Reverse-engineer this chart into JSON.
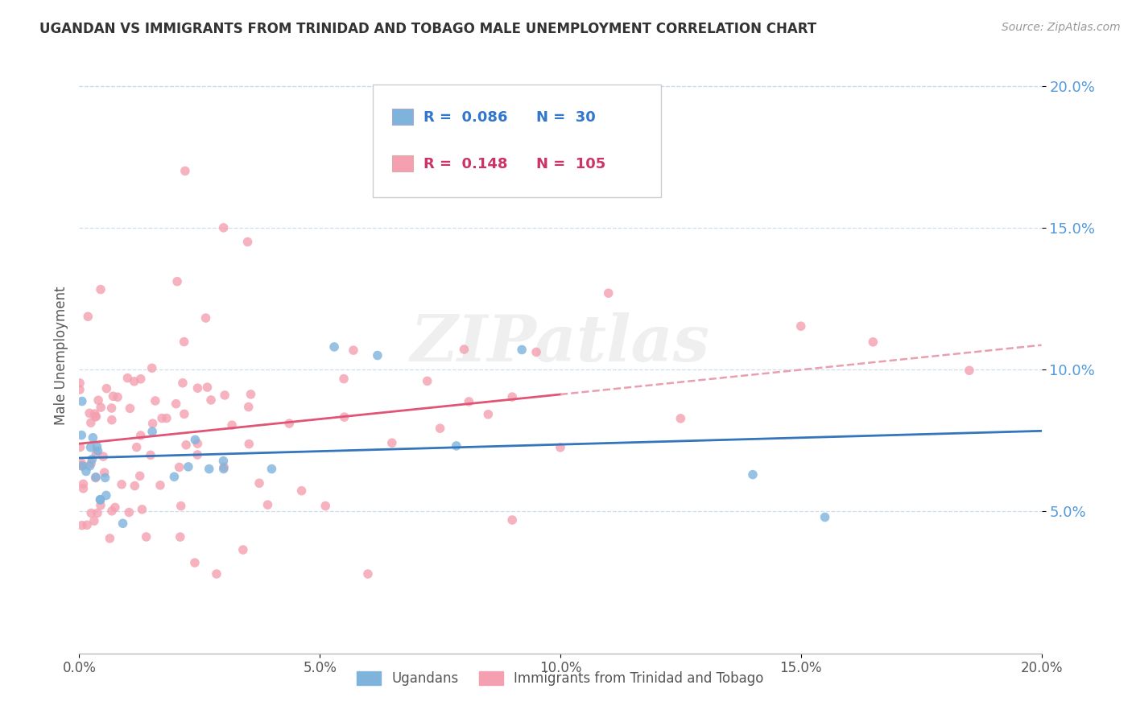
{
  "title": "UGANDAN VS IMMIGRANTS FROM TRINIDAD AND TOBAGO MALE UNEMPLOYMENT CORRELATION CHART",
  "source": "Source: ZipAtlas.com",
  "ylabel": "Male Unemployment",
  "xlim": [
    0.0,
    0.2
  ],
  "ylim": [
    0.0,
    0.21
  ],
  "xticks": [
    0.0,
    0.05,
    0.1,
    0.15,
    0.2
  ],
  "xtick_labels": [
    "0.0%",
    "5.0%",
    "10.0%",
    "15.0%",
    "20.0%"
  ],
  "yticks": [
    0.05,
    0.1,
    0.15,
    0.2
  ],
  "ytick_labels": [
    "5.0%",
    "10.0%",
    "15.0%",
    "20.0%"
  ],
  "ugandan_color": "#7EB3DC",
  "trinidad_color": "#F4A0B0",
  "ugandan_line_color": "#3575BB",
  "trinidad_line_color": "#E05575",
  "trinidad_dash_color": "#E8A0B0",
  "ugandan_R": 0.086,
  "ugandan_N": 30,
  "trinidad_R": 0.148,
  "trinidad_N": 105,
  "legend_label_ugandan": "Ugandans",
  "legend_label_trinidad": "Immigrants from Trinidad and Tobago",
  "watermark": "ZIPatlas",
  "title_color": "#333333",
  "source_color": "#999999",
  "ylabel_color": "#555555",
  "ytick_color": "#5599DD",
  "xtick_color": "#555555",
  "grid_color": "#CCDDEE",
  "background_color": "#FFFFFF"
}
